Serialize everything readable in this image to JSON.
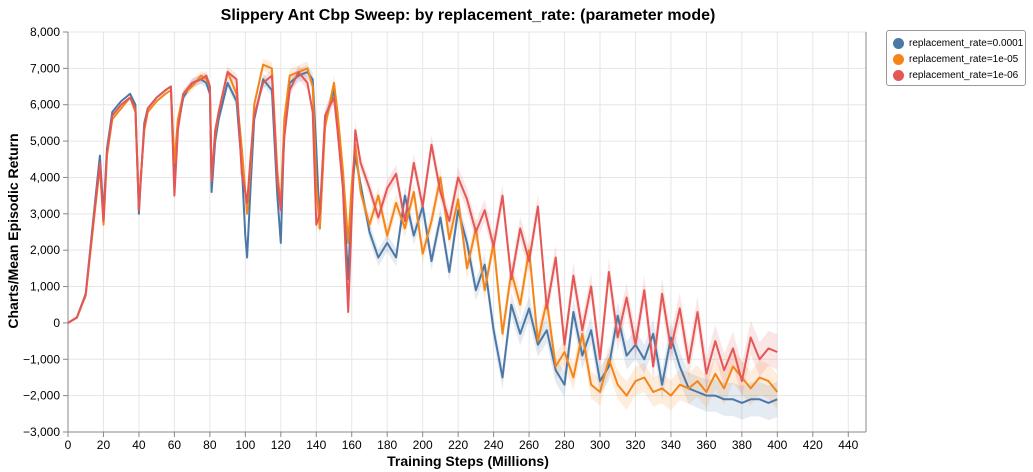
{
  "chart_data": {
    "type": "line",
    "title": "Slippery Ant Cbp Sweep: by replacement_rate: (parameter mode)",
    "xlabel": "Training Steps (Millions)",
    "ylabel": "Charts/Mean Episodic Return",
    "xlim": [
      0,
      450
    ],
    "ylim": [
      -3000,
      8000
    ],
    "x_ticks": [
      0,
      20,
      40,
      60,
      80,
      100,
      120,
      140,
      160,
      180,
      200,
      220,
      240,
      260,
      280,
      300,
      320,
      340,
      360,
      380,
      400,
      420,
      440
    ],
    "x_tick_labels": [
      "0",
      "20",
      "40",
      "60",
      "80",
      "100",
      "120",
      "140",
      "160",
      "180",
      "200",
      "220",
      "240",
      "260",
      "280",
      "300",
      "320",
      "340",
      "360",
      "380",
      "400",
      "420",
      "440"
    ],
    "y_ticks": [
      -3000,
      -2000,
      -1000,
      0,
      1000,
      2000,
      3000,
      4000,
      5000,
      6000,
      7000,
      8000
    ],
    "y_tick_labels": [
      "−3,000",
      "−2,000",
      "−1,000",
      "0",
      "1,000",
      "2,000",
      "3,000",
      "4,000",
      "5,000",
      "6,000",
      "7,000",
      "8,000"
    ],
    "grid": true,
    "legend_position": "top-right",
    "series": [
      {
        "name": "replacement_rate=0.0001",
        "color": "#4c78a8",
        "x": [
          0,
          5,
          10,
          15,
          18,
          20,
          22,
          25,
          30,
          35,
          38,
          40,
          41,
          43,
          45,
          50,
          55,
          58,
          60,
          62,
          65,
          70,
          75,
          78,
          80,
          81,
          83,
          85,
          90,
          95,
          98,
          100,
          101,
          103,
          105,
          110,
          115,
          118,
          120,
          122,
          125,
          130,
          135,
          138,
          140,
          142,
          145,
          150,
          152,
          155,
          158,
          160,
          162,
          165,
          170,
          175,
          180,
          185,
          190,
          195,
          200,
          205,
          210,
          215,
          220,
          225,
          230,
          235,
          240,
          245,
          250,
          255,
          260,
          265,
          270,
          275,
          280,
          285,
          290,
          295,
          300,
          305,
          310,
          315,
          320,
          325,
          330,
          335,
          340,
          345,
          350,
          355,
          360,
          365,
          370,
          375,
          380,
          385,
          390,
          395,
          400
        ],
        "y": [
          0,
          150,
          800,
          3200,
          4600,
          3000,
          4800,
          5800,
          6100,
          6300,
          6000,
          3000,
          3900,
          5500,
          5900,
          6200,
          6400,
          6500,
          4200,
          5400,
          6200,
          6600,
          6700,
          6600,
          6300,
          3600,
          5000,
          5600,
          6600,
          6100,
          4300,
          2400,
          1800,
          3800,
          5600,
          6700,
          6400,
          3500,
          2200,
          5400,
          6600,
          6800,
          6900,
          6700,
          4800,
          2600,
          5600,
          6400,
          5600,
          3800,
          1200,
          3500,
          4600,
          3800,
          2500,
          1800,
          2200,
          1800,
          3500,
          2400,
          3200,
          1700,
          2900,
          1400,
          3100,
          2200,
          900,
          1600,
          -200,
          -1500,
          500,
          -300,
          400,
          -600,
          -200,
          -1300,
          -1700,
          300,
          -900,
          -200,
          -1600,
          -1200,
          200,
          -900,
          -600,
          -1000,
          -300,
          -1700,
          -400,
          -1200,
          -1800,
          -1900,
          -2000,
          -2000,
          -2100,
          -2100,
          -2200,
          -2100,
          -2100,
          -2200,
          -2100
        ]
      },
      {
        "name": "replacement_rate=1e-05",
        "color": "#f58518",
        "x": [
          0,
          5,
          10,
          15,
          18,
          20,
          22,
          25,
          30,
          35,
          38,
          40,
          41,
          43,
          45,
          50,
          55,
          58,
          60,
          62,
          65,
          70,
          75,
          78,
          80,
          81,
          83,
          85,
          90,
          95,
          98,
          100,
          101,
          103,
          105,
          110,
          115,
          118,
          120,
          122,
          125,
          130,
          135,
          138,
          140,
          142,
          145,
          150,
          152,
          155,
          158,
          160,
          162,
          165,
          170,
          175,
          180,
          185,
          190,
          195,
          200,
          205,
          210,
          215,
          220,
          225,
          230,
          235,
          240,
          245,
          250,
          255,
          260,
          265,
          270,
          275,
          280,
          285,
          290,
          295,
          300,
          305,
          310,
          315,
          320,
          325,
          330,
          335,
          340,
          345,
          350,
          355,
          360,
          365,
          370,
          375,
          380,
          385,
          390,
          395,
          400
        ],
        "y": [
          0,
          150,
          750,
          3000,
          4300,
          2700,
          4600,
          5600,
          5900,
          6200,
          5800,
          3200,
          4000,
          5300,
          5800,
          6100,
          6300,
          6400,
          4400,
          5600,
          6300,
          6500,
          6800,
          6700,
          6500,
          4000,
          5200,
          5800,
          6900,
          6300,
          4800,
          3600,
          3000,
          4400,
          6000,
          7100,
          7000,
          4200,
          3200,
          5600,
          6800,
          6900,
          7000,
          6500,
          3800,
          2600,
          5400,
          6600,
          5800,
          4200,
          2200,
          3800,
          4900,
          3600,
          2700,
          3500,
          2400,
          3300,
          2600,
          3600,
          1900,
          2800,
          4000,
          2300,
          3400,
          1500,
          2600,
          900,
          2200,
          -300,
          1400,
          500,
          2000,
          -500,
          600,
          -1200,
          -800,
          -1500,
          -300,
          -1700,
          -1900,
          -1000,
          -1700,
          -2000,
          -1600,
          -1500,
          -1900,
          -1800,
          -2000,
          -1700,
          -1800,
          -1600,
          -1900,
          -1400,
          -1800,
          -1200,
          -1500,
          -1800,
          -1500,
          -1600,
          -1900
        ]
      },
      {
        "name": "replacement_rate=1e-06",
        "color": "#e45756",
        "x": [
          0,
          5,
          10,
          15,
          18,
          20,
          22,
          25,
          30,
          35,
          38,
          40,
          41,
          43,
          45,
          50,
          55,
          58,
          60,
          62,
          65,
          70,
          75,
          78,
          80,
          81,
          83,
          85,
          90,
          95,
          98,
          100,
          101,
          103,
          105,
          110,
          115,
          118,
          120,
          122,
          125,
          130,
          135,
          138,
          140,
          142,
          145,
          150,
          152,
          155,
          158,
          160,
          162,
          165,
          170,
          175,
          180,
          185,
          190,
          195,
          200,
          205,
          210,
          215,
          220,
          225,
          230,
          235,
          240,
          245,
          250,
          255,
          260,
          265,
          270,
          275,
          280,
          285,
          290,
          295,
          300,
          305,
          310,
          315,
          320,
          325,
          330,
          335,
          340,
          345,
          350,
          355,
          360,
          365,
          370,
          375,
          380,
          385,
          390,
          395,
          400
        ],
        "y": [
          0,
          150,
          780,
          3100,
          4400,
          2800,
          4700,
          5700,
          6000,
          6200,
          5900,
          3100,
          3900,
          5400,
          5900,
          6200,
          6400,
          6500,
          3500,
          5300,
          6300,
          6600,
          6700,
          6800,
          6500,
          3900,
          5300,
          5800,
          6900,
          6700,
          4100,
          3600,
          3300,
          4600,
          5700,
          6600,
          6800,
          3900,
          3100,
          5100,
          6400,
          6900,
          6600,
          5800,
          2700,
          3000,
          5700,
          6200,
          5300,
          3700,
          300,
          2900,
          5300,
          4400,
          3700,
          2900,
          3700,
          4100,
          2800,
          4400,
          3200,
          4900,
          3600,
          2800,
          4000,
          3400,
          2500,
          3100,
          2100,
          3500,
          1200,
          2600,
          1700,
          3200,
          400,
          1800,
          -600,
          1300,
          -200,
          1000,
          -1000,
          1400,
          -400,
          700,
          -600,
          900,
          -1200,
          800,
          -700,
          400,
          -1100,
          300,
          -1400,
          -500,
          -1300,
          -700,
          -1600,
          -400,
          -1000,
          -700,
          -800
        ]
      }
    ]
  }
}
